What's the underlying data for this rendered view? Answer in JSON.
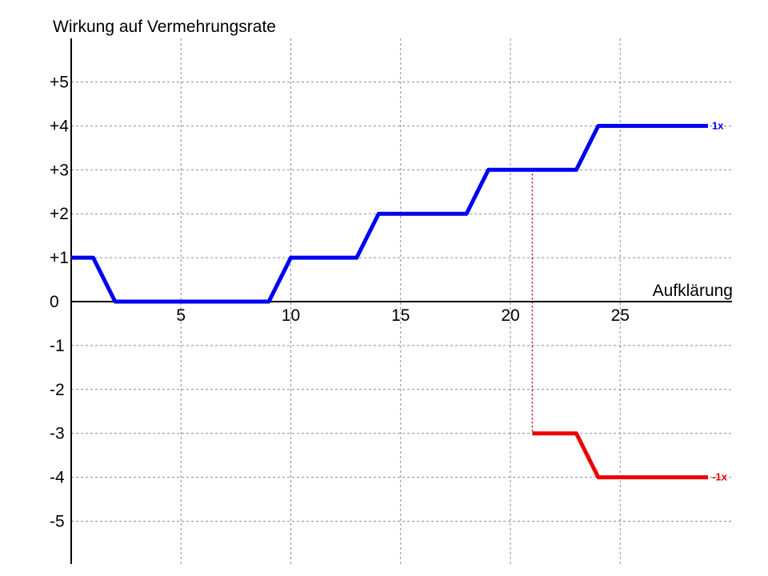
{
  "chart_data": {
    "type": "line",
    "title": "",
    "ylabel": "Wirkung auf Vermehrungsrate",
    "xlabel": "Aufklärung",
    "xlim": [
      0,
      30
    ],
    "ylim": [
      -6,
      6
    ],
    "grid": true,
    "x_ticks": [
      {
        "value": 5,
        "label": "5"
      },
      {
        "value": 10,
        "label": "10"
      },
      {
        "value": 15,
        "label": "15"
      },
      {
        "value": 20,
        "label": "20"
      },
      {
        "value": 25,
        "label": "25"
      }
    ],
    "y_ticks": [
      {
        "value": 5,
        "label": "+5"
      },
      {
        "value": 4,
        "label": "+4"
      },
      {
        "value": 3,
        "label": "+3"
      },
      {
        "value": 2,
        "label": "+2"
      },
      {
        "value": 1,
        "label": "+1"
      },
      {
        "value": 0,
        "label": "0"
      },
      {
        "value": -1,
        "label": "-1"
      },
      {
        "value": -2,
        "label": "-2"
      },
      {
        "value": -3,
        "label": "-3"
      },
      {
        "value": -4,
        "label": "-4"
      },
      {
        "value": -5,
        "label": "-5"
      }
    ],
    "series": [
      {
        "name": "1x",
        "color": "#0000ee",
        "points": [
          [
            0,
            1
          ],
          [
            1,
            1
          ],
          [
            2,
            0
          ],
          [
            9,
            0
          ],
          [
            10,
            1
          ],
          [
            13,
            1
          ],
          [
            14,
            2
          ],
          [
            18,
            2
          ],
          [
            19,
            3
          ],
          [
            23,
            3
          ],
          [
            24,
            4
          ],
          [
            29,
            4
          ]
        ]
      },
      {
        "name": "-1x",
        "color": "#ee0000",
        "points": [
          [
            21,
            -3
          ],
          [
            23,
            -3
          ],
          [
            24,
            -4
          ],
          [
            29,
            -4
          ]
        ]
      }
    ],
    "annotations": [
      {
        "type": "dotted-vertical",
        "x": 21,
        "y_from": 3,
        "y_to": -3,
        "color": "#c00000"
      }
    ]
  }
}
